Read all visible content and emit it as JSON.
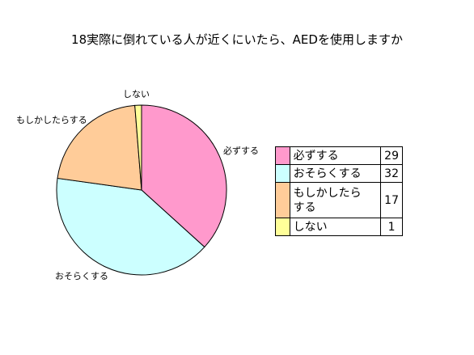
{
  "chart_data": {
    "type": "pie",
    "title": "18実際に倒れている人が近くにいたら、AEDを使用しますか",
    "categories": [
      "必ずする",
      "おそらくする",
      "もしかしたらする",
      "しない"
    ],
    "legend_labels": [
      "必ずする",
      "おそらくする",
      "もしかしたら\nする",
      "しない"
    ],
    "values": [
      29,
      32,
      17,
      1
    ],
    "colors": [
      "#ff99cc",
      "#ccffff",
      "#ffcc99",
      "#ffff99"
    ],
    "start_angle_deg": 0,
    "direction": "clockwise",
    "legend_placement": "right",
    "legend_values": [
      "29",
      "32",
      "17",
      "1"
    ]
  }
}
